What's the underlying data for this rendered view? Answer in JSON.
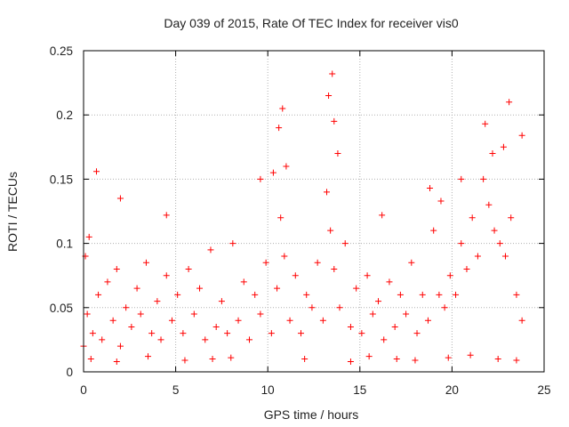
{
  "chart_data": {
    "type": "scatter",
    "title": "Day 039 of 2015, Rate Of TEC Index for receiver vis0",
    "xlabel": "GPS time / hours",
    "ylabel": "ROTI / TECUs",
    "xlim": [
      0,
      25
    ],
    "ylim": [
      0,
      0.25
    ],
    "xticks": [
      0,
      5,
      10,
      15,
      20,
      25
    ],
    "yticks": [
      0,
      0.05,
      0.1,
      0.15,
      0.2,
      0.25
    ],
    "xtick_labels": [
      "0",
      "5",
      "10",
      "15",
      "20",
      "25"
    ],
    "ytick_labels": [
      "0",
      "0.05",
      "0.1",
      "0.15",
      "0.2",
      "0.25"
    ],
    "grid": true,
    "marker": "plus",
    "color": "#ff0000",
    "series": [
      {
        "x": [
          0.0,
          0.1,
          0.2,
          0.3,
          0.5,
          0.8,
          1.0,
          1.3,
          1.6,
          1.8,
          2.0,
          2.3,
          2.6,
          2.9,
          3.1,
          3.4,
          3.7,
          4.0,
          4.2,
          4.5,
          4.8,
          5.1,
          5.4,
          5.7,
          6.0,
          6.3,
          6.6,
          6.9,
          7.2,
          7.5,
          7.8,
          8.1,
          8.4,
          8.7,
          9.0,
          9.3,
          9.6,
          9.9,
          10.2,
          10.5,
          10.7,
          10.9,
          11.2,
          11.5,
          11.8,
          12.1,
          12.4,
          12.7,
          13.0,
          13.2,
          13.4,
          13.6,
          13.9,
          14.2,
          14.5,
          14.8,
          15.1,
          15.4,
          15.7,
          16.0,
          16.3,
          16.6,
          16.9,
          17.2,
          17.5,
          17.8,
          18.1,
          18.4,
          18.7,
          19.0,
          19.3,
          19.6,
          19.9,
          20.2,
          20.5,
          20.8,
          21.1,
          21.4,
          21.7,
          22.0,
          22.3,
          22.6,
          22.9,
          23.2,
          23.5,
          23.8,
          0.7,
          2.0,
          4.5,
          9.6,
          10.3,
          10.6,
          10.8,
          11.0,
          13.3,
          13.5,
          13.6,
          13.8,
          16.2,
          18.8,
          19.4,
          20.5,
          21.8,
          22.2,
          22.8,
          23.1,
          23.8,
          0.4,
          1.8,
          3.5,
          5.5,
          7.0,
          8.0,
          12.0,
          14.5,
          15.5,
          17.0,
          18.0,
          19.8,
          21.0,
          22.5,
          23.5
        ],
        "y": [
          0.02,
          0.09,
          0.045,
          0.105,
          0.03,
          0.06,
          0.025,
          0.07,
          0.04,
          0.08,
          0.02,
          0.05,
          0.035,
          0.065,
          0.045,
          0.085,
          0.03,
          0.055,
          0.025,
          0.075,
          0.04,
          0.06,
          0.03,
          0.08,
          0.045,
          0.065,
          0.025,
          0.095,
          0.035,
          0.055,
          0.03,
          0.1,
          0.04,
          0.07,
          0.025,
          0.06,
          0.045,
          0.085,
          0.03,
          0.065,
          0.12,
          0.09,
          0.04,
          0.075,
          0.03,
          0.06,
          0.05,
          0.085,
          0.04,
          0.14,
          0.11,
          0.08,
          0.05,
          0.1,
          0.035,
          0.065,
          0.03,
          0.075,
          0.045,
          0.055,
          0.025,
          0.07,
          0.035,
          0.06,
          0.045,
          0.085,
          0.03,
          0.06,
          0.04,
          0.11,
          0.06,
          0.05,
          0.075,
          0.06,
          0.1,
          0.08,
          0.12,
          0.09,
          0.15,
          0.13,
          0.11,
          0.1,
          0.09,
          0.12,
          0.06,
          0.04,
          0.156,
          0.135,
          0.122,
          0.15,
          0.155,
          0.19,
          0.205,
          0.16,
          0.215,
          0.232,
          0.195,
          0.17,
          0.122,
          0.143,
          0.133,
          0.15,
          0.193,
          0.17,
          0.175,
          0.21,
          0.184,
          0.01,
          0.008,
          0.012,
          0.009,
          0.01,
          0.011,
          0.01,
          0.008,
          0.012,
          0.01,
          0.009,
          0.011,
          0.013,
          0.01,
          0.009
        ]
      }
    ]
  }
}
